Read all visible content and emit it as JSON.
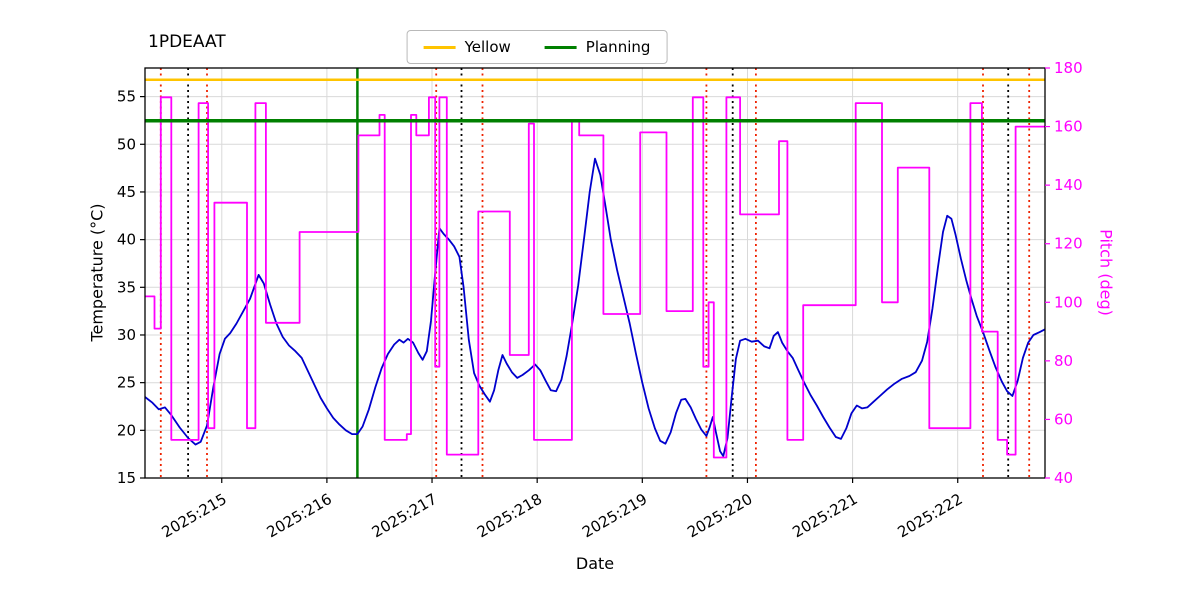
{
  "chart_data": {
    "type": "line",
    "title": "1PDEAAT",
    "xlabel": "Date",
    "ylabel_left": "Temperature (°C)",
    "ylabel_right": "Pitch (deg)",
    "xlim": [
      214.27,
      222.83
    ],
    "ylim_left": [
      15,
      58
    ],
    "ylim_right": [
      40,
      180
    ],
    "grid": true,
    "axis_right_color": "#FF00FF",
    "x_ticks": [
      {
        "value": 215,
        "label": "2025:215"
      },
      {
        "value": 216,
        "label": "2025:216"
      },
      {
        "value": 217,
        "label": "2025:217"
      },
      {
        "value": 218,
        "label": "2025:218"
      },
      {
        "value": 219,
        "label": "2025:219"
      },
      {
        "value": 220,
        "label": "2025:220"
      },
      {
        "value": 221,
        "label": "2025:221"
      },
      {
        "value": 222,
        "label": "2025:222"
      }
    ],
    "y_ticks_left": [
      15,
      20,
      25,
      30,
      35,
      40,
      45,
      50,
      55
    ],
    "y_ticks_right": [
      40,
      60,
      80,
      100,
      120,
      140,
      160,
      180
    ],
    "legend": {
      "position": "top-center",
      "items": [
        {
          "label": "Yellow",
          "color": "#FFC400"
        },
        {
          "label": "Planning",
          "color": "#008000"
        }
      ]
    },
    "hlines": [
      {
        "name": "Yellow",
        "axis": "right",
        "value": 176,
        "color": "#FFC400",
        "width": 2.5
      },
      {
        "name": "Planning",
        "axis": "right",
        "value": 162,
        "color": "#008000",
        "width": 3.5
      }
    ],
    "vlines": [
      {
        "name": "green-solid-marker",
        "x": 216.29,
        "color": "#008000",
        "style": "solid",
        "width": 2.5
      },
      {
        "name": "red-dotted-marker",
        "x": 214.42,
        "color": "#EE2200",
        "style": "dotted",
        "width": 1.8
      },
      {
        "name": "black-dotted-marker",
        "x": 214.68,
        "color": "#000000",
        "style": "dotted",
        "width": 1.8
      },
      {
        "name": "red-dotted-marker",
        "x": 214.86,
        "color": "#EE2200",
        "style": "dotted",
        "width": 1.8
      },
      {
        "name": "red-dotted-marker",
        "x": 217.04,
        "color": "#EE2200",
        "style": "dotted",
        "width": 1.8
      },
      {
        "name": "black-dotted-marker",
        "x": 217.28,
        "color": "#000000",
        "style": "dotted",
        "width": 1.8
      },
      {
        "name": "red-dotted-marker",
        "x": 217.48,
        "color": "#EE2200",
        "style": "dotted",
        "width": 1.8
      },
      {
        "name": "red-dotted-marker",
        "x": 219.61,
        "color": "#EE2200",
        "style": "dotted",
        "width": 1.8
      },
      {
        "name": "black-dotted-marker",
        "x": 219.86,
        "color": "#000000",
        "style": "dotted",
        "width": 1.8
      },
      {
        "name": "red-dotted-marker",
        "x": 220.08,
        "color": "#EE2200",
        "style": "dotted",
        "width": 1.8
      },
      {
        "name": "red-dotted-marker",
        "x": 222.24,
        "color": "#EE2200",
        "style": "dotted",
        "width": 1.8
      },
      {
        "name": "black-dotted-marker",
        "x": 222.48,
        "color": "#000000",
        "style": "dotted",
        "width": 1.8
      },
      {
        "name": "red-dotted-marker",
        "x": 222.68,
        "color": "#EE2200",
        "style": "dotted",
        "width": 1.8
      }
    ],
    "series": [
      {
        "name": "Temperature",
        "axis": "left",
        "type": "line",
        "color": "#0000CD",
        "width": 1.8,
        "points": [
          [
            214.27,
            23.5
          ],
          [
            214.34,
            22.9
          ],
          [
            214.4,
            22.2
          ],
          [
            214.46,
            22.4
          ],
          [
            214.52,
            21.6
          ],
          [
            214.6,
            20.3
          ],
          [
            214.68,
            19.2
          ],
          [
            214.75,
            18.5
          ],
          [
            214.8,
            18.8
          ],
          [
            214.86,
            20.5
          ],
          [
            214.92,
            24.5
          ],
          [
            214.98,
            28.0
          ],
          [
            215.03,
            29.6
          ],
          [
            215.08,
            30.2
          ],
          [
            215.14,
            31.2
          ],
          [
            215.2,
            32.4
          ],
          [
            215.27,
            33.8
          ],
          [
            215.35,
            36.3
          ],
          [
            215.4,
            35.4
          ],
          [
            215.46,
            33.2
          ],
          [
            215.52,
            31.2
          ],
          [
            215.58,
            29.8
          ],
          [
            215.64,
            28.9
          ],
          [
            215.7,
            28.3
          ],
          [
            215.76,
            27.6
          ],
          [
            215.82,
            26.2
          ],
          [
            215.88,
            24.8
          ],
          [
            215.94,
            23.4
          ],
          [
            216.0,
            22.3
          ],
          [
            216.06,
            21.3
          ],
          [
            216.12,
            20.6
          ],
          [
            216.18,
            20.0
          ],
          [
            216.24,
            19.6
          ],
          [
            216.29,
            19.6
          ],
          [
            216.34,
            20.4
          ],
          [
            216.4,
            22.2
          ],
          [
            216.46,
            24.5
          ],
          [
            216.52,
            26.5
          ],
          [
            216.58,
            28.0
          ],
          [
            216.64,
            29.0
          ],
          [
            216.69,
            29.5
          ],
          [
            216.73,
            29.2
          ],
          [
            216.77,
            29.6
          ],
          [
            216.82,
            29.2
          ],
          [
            216.87,
            28.1
          ],
          [
            216.91,
            27.4
          ],
          [
            216.95,
            28.3
          ],
          [
            216.99,
            31.5
          ],
          [
            217.03,
            36.5
          ],
          [
            217.07,
            41.2
          ],
          [
            217.11,
            40.6
          ],
          [
            217.16,
            40.0
          ],
          [
            217.21,
            39.3
          ],
          [
            217.26,
            38.2
          ],
          [
            217.3,
            35.0
          ],
          [
            217.35,
            29.5
          ],
          [
            217.4,
            26.0
          ],
          [
            217.45,
            24.7
          ],
          [
            217.5,
            23.8
          ],
          [
            217.55,
            23.0
          ],
          [
            217.59,
            24.2
          ],
          [
            217.63,
            26.3
          ],
          [
            217.67,
            27.9
          ],
          [
            217.71,
            27.0
          ],
          [
            217.76,
            26.1
          ],
          [
            217.81,
            25.5
          ],
          [
            217.86,
            25.8
          ],
          [
            217.92,
            26.3
          ],
          [
            217.98,
            26.9
          ],
          [
            218.03,
            26.3
          ],
          [
            218.08,
            25.2
          ],
          [
            218.13,
            24.2
          ],
          [
            218.18,
            24.1
          ],
          [
            218.23,
            25.3
          ],
          [
            218.28,
            27.8
          ],
          [
            218.33,
            31.0
          ],
          [
            218.39,
            35.2
          ],
          [
            218.45,
            40.5
          ],
          [
            218.5,
            45.0
          ],
          [
            218.55,
            48.5
          ],
          [
            218.6,
            46.8
          ],
          [
            218.65,
            43.5
          ],
          [
            218.7,
            40.0
          ],
          [
            218.76,
            36.8
          ],
          [
            218.82,
            34.0
          ],
          [
            218.88,
            31.2
          ],
          [
            218.94,
            28.0
          ],
          [
            219.0,
            25.0
          ],
          [
            219.06,
            22.3
          ],
          [
            219.12,
            20.2
          ],
          [
            219.17,
            18.9
          ],
          [
            219.22,
            18.6
          ],
          [
            219.27,
            19.8
          ],
          [
            219.32,
            21.8
          ],
          [
            219.37,
            23.2
          ],
          [
            219.41,
            23.3
          ],
          [
            219.46,
            22.4
          ],
          [
            219.51,
            21.2
          ],
          [
            219.56,
            20.1
          ],
          [
            219.61,
            19.4
          ],
          [
            219.64,
            20.3
          ],
          [
            219.67,
            21.4
          ],
          [
            219.7,
            19.8
          ],
          [
            219.74,
            17.8
          ],
          [
            219.77,
            17.3
          ],
          [
            219.81,
            19.2
          ],
          [
            219.85,
            23.5
          ],
          [
            219.89,
            27.5
          ],
          [
            219.93,
            29.4
          ],
          [
            219.98,
            29.6
          ],
          [
            220.04,
            29.3
          ],
          [
            220.1,
            29.4
          ],
          [
            220.16,
            28.8
          ],
          [
            220.21,
            28.6
          ],
          [
            220.25,
            29.9
          ],
          [
            220.29,
            30.3
          ],
          [
            220.33,
            29.2
          ],
          [
            220.38,
            28.3
          ],
          [
            220.43,
            27.6
          ],
          [
            220.48,
            26.4
          ],
          [
            220.54,
            25.0
          ],
          [
            220.6,
            23.7
          ],
          [
            220.66,
            22.6
          ],
          [
            220.72,
            21.4
          ],
          [
            220.78,
            20.3
          ],
          [
            220.84,
            19.3
          ],
          [
            220.89,
            19.1
          ],
          [
            220.94,
            20.2
          ],
          [
            220.99,
            21.8
          ],
          [
            221.04,
            22.6
          ],
          [
            221.09,
            22.3
          ],
          [
            221.14,
            22.4
          ],
          [
            221.2,
            23.0
          ],
          [
            221.26,
            23.6
          ],
          [
            221.33,
            24.3
          ],
          [
            221.4,
            24.9
          ],
          [
            221.47,
            25.4
          ],
          [
            221.54,
            25.7
          ],
          [
            221.6,
            26.1
          ],
          [
            221.66,
            27.3
          ],
          [
            221.71,
            29.3
          ],
          [
            221.76,
            32.8
          ],
          [
            221.81,
            37.0
          ],
          [
            221.86,
            40.8
          ],
          [
            221.9,
            42.5
          ],
          [
            221.94,
            42.2
          ],
          [
            221.98,
            40.5
          ],
          [
            222.03,
            38.0
          ],
          [
            222.08,
            35.8
          ],
          [
            222.13,
            33.8
          ],
          [
            222.18,
            32.0
          ],
          [
            222.24,
            30.3
          ],
          [
            222.3,
            28.4
          ],
          [
            222.36,
            26.6
          ],
          [
            222.42,
            25.1
          ],
          [
            222.47,
            24.1
          ],
          [
            222.52,
            23.6
          ],
          [
            222.57,
            25.2
          ],
          [
            222.62,
            27.6
          ],
          [
            222.67,
            29.2
          ],
          [
            222.72,
            30.0
          ],
          [
            222.78,
            30.3
          ],
          [
            222.83,
            30.6
          ]
        ]
      },
      {
        "name": "Pitch",
        "axis": "right",
        "type": "step",
        "color": "#FF00FF",
        "width": 1.8,
        "points": [
          [
            214.27,
            102
          ],
          [
            214.36,
            91
          ],
          [
            214.42,
            170
          ],
          [
            214.52,
            53
          ],
          [
            214.78,
            168
          ],
          [
            214.87,
            57
          ],
          [
            214.93,
            134
          ],
          [
            215.24,
            57
          ],
          [
            215.32,
            168
          ],
          [
            215.42,
            93
          ],
          [
            215.74,
            124
          ],
          [
            216.3,
            157
          ],
          [
            216.5,
            164
          ],
          [
            216.55,
            53
          ],
          [
            216.76,
            55
          ],
          [
            216.8,
            164
          ],
          [
            216.85,
            157
          ],
          [
            216.97,
            170
          ],
          [
            217.03,
            78
          ],
          [
            217.07,
            170
          ],
          [
            217.14,
            48
          ],
          [
            217.44,
            131
          ],
          [
            217.74,
            82
          ],
          [
            217.92,
            161
          ],
          [
            217.97,
            53
          ],
          [
            218.33,
            162
          ],
          [
            218.4,
            157
          ],
          [
            218.63,
            96
          ],
          [
            218.98,
            158
          ],
          [
            219.23,
            97
          ],
          [
            219.48,
            170
          ],
          [
            219.58,
            78
          ],
          [
            219.63,
            100
          ],
          [
            219.68,
            47
          ],
          [
            219.8,
            170
          ],
          [
            219.93,
            130
          ],
          [
            220.3,
            155
          ],
          [
            220.38,
            53
          ],
          [
            220.53,
            99
          ],
          [
            221.03,
            168
          ],
          [
            221.28,
            100
          ],
          [
            221.43,
            146
          ],
          [
            221.73,
            57
          ],
          [
            222.12,
            168
          ],
          [
            222.23,
            90
          ],
          [
            222.38,
            53
          ],
          [
            222.47,
            48
          ],
          [
            222.55,
            160
          ]
        ]
      }
    ]
  }
}
